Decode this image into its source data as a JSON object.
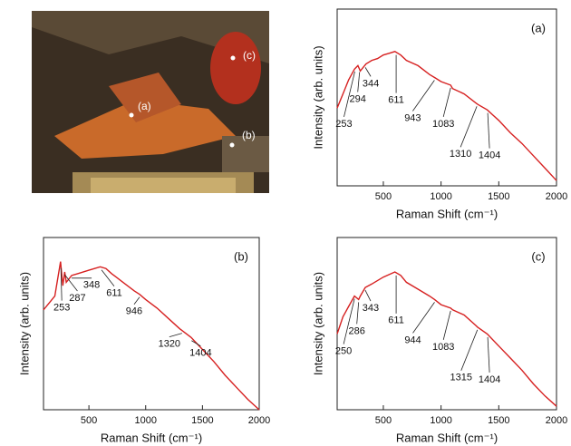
{
  "photo": {
    "labels": [
      "(a)",
      "(b)",
      "(c)"
    ]
  },
  "chart_data": [
    {
      "type": "line",
      "panel_label": "(a)",
      "x_label": "Raman Shift (cm⁻¹)",
      "y_label": "Intensity (arb. units)",
      "color": "#d62020",
      "xlim": [
        100,
        2000
      ],
      "xticks": [
        500,
        1000,
        1500,
        2000
      ],
      "ylim": [
        0,
        100
      ],
      "x": [
        100,
        150,
        200,
        250,
        280,
        300,
        350,
        400,
        450,
        500,
        550,
        600,
        650,
        700,
        800,
        900,
        950,
        1000,
        1083,
        1100,
        1200,
        1300,
        1320,
        1400,
        1450,
        1500,
        1600,
        1700,
        1800,
        1900,
        2000
      ],
      "values": [
        44,
        52,
        60,
        66,
        68,
        65,
        69,
        71,
        72,
        74,
        75,
        76,
        74,
        71,
        68,
        63,
        61,
        59,
        57,
        55,
        52,
        47,
        46,
        43,
        40,
        37,
        30,
        24,
        17,
        10,
        3
      ],
      "peaks": [
        253,
        294,
        344,
        611,
        943,
        1083,
        1310,
        1404
      ]
    },
    {
      "type": "line",
      "panel_label": "(b)",
      "x_label": "Raman Shift (cm⁻¹)",
      "y_label": "Intensity (arb. units)",
      "color": "#d62020",
      "xlim": [
        100,
        2000
      ],
      "xticks": [
        500,
        1000,
        1500,
        2000
      ],
      "ylim": [
        0,
        100
      ],
      "x": [
        100,
        150,
        200,
        250,
        270,
        287,
        300,
        348,
        400,
        500,
        600,
        650,
        700,
        800,
        900,
        946,
        1000,
        1100,
        1200,
        1300,
        1320,
        1400,
        1500,
        1600,
        1700,
        1800,
        1900,
        2000
      ],
      "values": [
        58,
        62,
        66,
        86,
        72,
        80,
        74,
        78,
        79,
        81,
        83,
        82,
        79,
        74,
        69,
        67,
        64,
        59,
        53,
        47,
        46,
        42,
        35,
        28,
        20,
        13,
        6,
        0
      ],
      "peaks": [
        253,
        287,
        348,
        611,
        946,
        1320,
        1404
      ]
    },
    {
      "type": "line",
      "panel_label": "(c)",
      "x_label": "Raman Shift (cm⁻¹)",
      "y_label": "Intensity (arb. units)",
      "color": "#d62020",
      "xlim": [
        100,
        2000
      ],
      "xticks": [
        500,
        1000,
        1500,
        2000
      ],
      "ylim": [
        0,
        100
      ],
      "x": [
        100,
        150,
        200,
        250,
        286,
        300,
        343,
        400,
        500,
        600,
        650,
        700,
        800,
        900,
        944,
        1000,
        1083,
        1100,
        1200,
        1300,
        1315,
        1400,
        1500,
        1600,
        1700,
        1800,
        1900,
        2000
      ],
      "values": [
        44,
        54,
        60,
        66,
        64,
        66,
        71,
        73,
        77,
        80,
        78,
        74,
        70,
        66,
        64,
        61,
        59,
        58,
        55,
        49,
        48,
        44,
        37,
        30,
        23,
        15,
        8,
        2
      ],
      "peaks": [
        250,
        286,
        343,
        611,
        944,
        1083,
        1315,
        1404
      ]
    }
  ]
}
